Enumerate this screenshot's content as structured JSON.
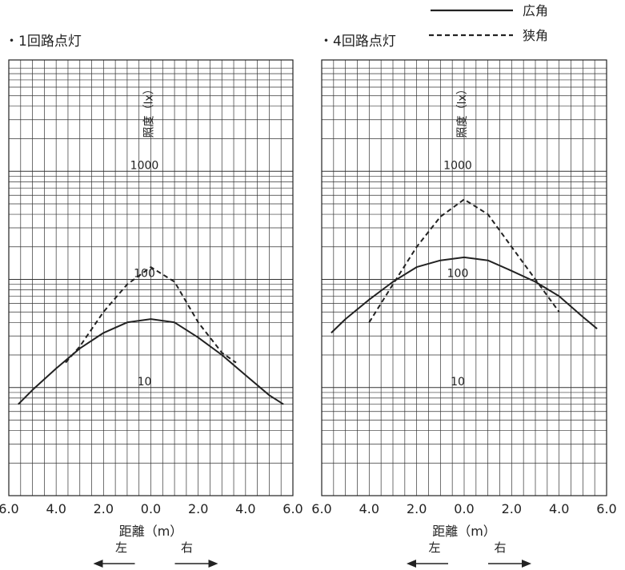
{
  "legend": {
    "items": [
      {
        "label": "広角",
        "style": "solid"
      },
      {
        "label": "狭角",
        "style": "dashed"
      }
    ]
  },
  "direction": {
    "left_label": "左",
    "right_label": "右"
  },
  "chart_data": [
    {
      "type": "line",
      "title": "・1回路点灯",
      "xlabel": "距離（m）",
      "ylabel": "照度（lx）",
      "x_ticks": [
        "6.0",
        "4.0",
        "2.0",
        "0.0",
        "2.0",
        "4.0",
        "6.0"
      ],
      "y_ticks": [
        "1000",
        "100",
        "10"
      ],
      "y_scale": "log",
      "xlim": [
        -6,
        6
      ],
      "ylim": [
        1,
        10000
      ],
      "grid": true,
      "series": [
        {
          "name": "広角",
          "style": "solid",
          "x": [
            -5.6,
            -5.0,
            -4.0,
            -3.0,
            -2.0,
            -1.0,
            0.0,
            1.0,
            2.0,
            3.0,
            4.0,
            5.0,
            5.6
          ],
          "y": [
            7,
            9.5,
            15,
            23,
            32,
            40,
            43,
            40,
            29,
            20,
            13,
            8.5,
            7
          ]
        },
        {
          "name": "狭角",
          "style": "dashed",
          "x": [
            -3.6,
            -3.0,
            -2.0,
            -1.0,
            0.0,
            1.0,
            2.0,
            3.0,
            3.6
          ],
          "y": [
            17,
            24,
            50,
            90,
            130,
            95,
            40,
            21,
            17
          ]
        }
      ]
    },
    {
      "type": "line",
      "title": "・4回路点灯",
      "xlabel": "距離（m）",
      "ylabel": "照度（lx）",
      "x_ticks": [
        "6.0",
        "4.0",
        "2.0",
        "0.0",
        "2.0",
        "4.0",
        "6.0"
      ],
      "y_ticks": [
        "1000",
        "100",
        "10"
      ],
      "y_scale": "log",
      "xlim": [
        -6,
        6
      ],
      "ylim": [
        1,
        10000
      ],
      "grid": true,
      "series": [
        {
          "name": "広角",
          "style": "solid",
          "x": [
            -5.6,
            -5.0,
            -4.0,
            -3.0,
            -2.0,
            -1.0,
            0.0,
            1.0,
            2.0,
            3.0,
            4.0,
            5.0,
            5.6
          ],
          "y": [
            32,
            43,
            65,
            95,
            130,
            150,
            160,
            150,
            120,
            95,
            70,
            45,
            35
          ]
        },
        {
          "name": "狭角",
          "style": "dashed",
          "x": [
            -4.0,
            -3.0,
            -2.0,
            -1.0,
            0.0,
            1.0,
            2.0,
            3.0,
            4.0
          ],
          "y": [
            40,
            90,
            200,
            380,
            550,
            400,
            200,
            100,
            50
          ]
        }
      ]
    }
  ]
}
